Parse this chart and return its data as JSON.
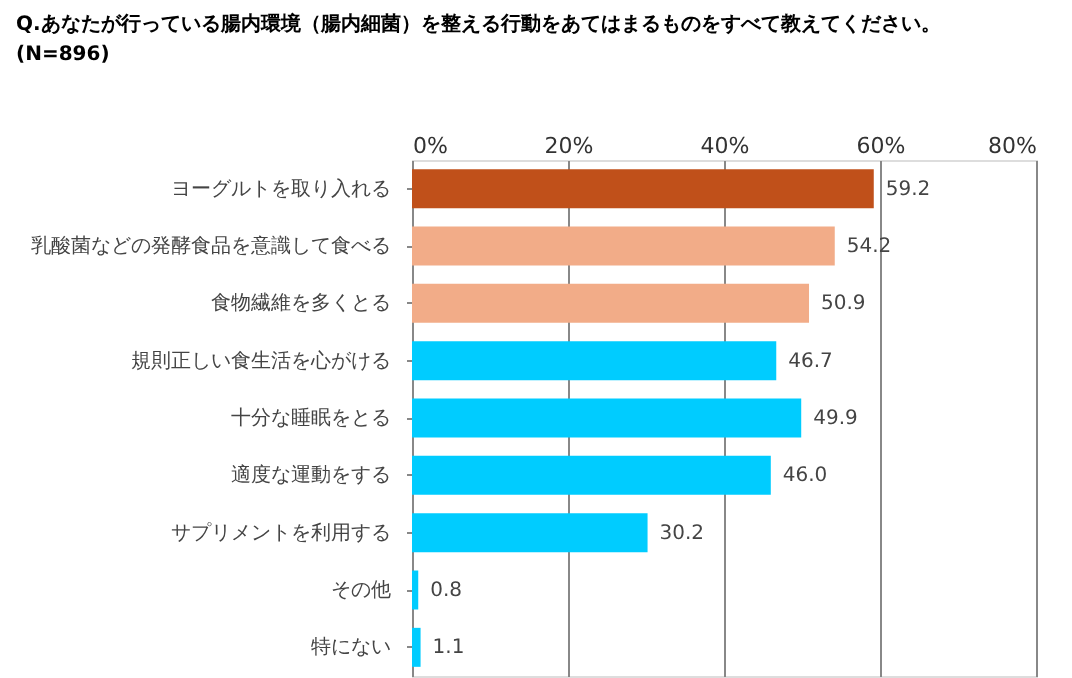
{
  "chart_data": {
    "type": "bar",
    "orientation": "horizontal",
    "title": "Q.あなたが行っている腸内環境（腸内細菌）を整える行動をあてはまるものをすべて教えてください。",
    "subtitle": "(N=896)",
    "categories": [
      "ヨーグルトを取り入れる",
      "乳酸菌などの発酵食品を意識して食べる",
      "食物繊維を多くとる",
      "規則正しい食生活を心がける",
      "十分な睡眠をとる",
      "適度な運動をする",
      "サプリメントを利用する",
      "その他",
      "特にない"
    ],
    "values": [
      59.2,
      54.2,
      50.9,
      46.7,
      49.9,
      46.0,
      30.2,
      0.8,
      1.1
    ],
    "colors": [
      "#c0501a",
      "#f2ac88",
      "#f2ac88",
      "#00ccff",
      "#00ccff",
      "#00ccff",
      "#00ccff",
      "#00ccff",
      "#00ccff"
    ],
    "xlim": [
      0,
      80
    ],
    "xticks": [
      {
        "value": 0,
        "label": "0%"
      },
      {
        "value": 20,
        "label": "20%"
      },
      {
        "value": 40,
        "label": "40%"
      },
      {
        "value": 60,
        "label": "60%"
      },
      {
        "value": 80,
        "label": "80%"
      }
    ],
    "value_labels": [
      "59.2",
      "54.2",
      "50.9",
      "46.7",
      "49.9",
      "46.0",
      "30.2",
      "0.8",
      "1.1"
    ],
    "grid": "x"
  }
}
